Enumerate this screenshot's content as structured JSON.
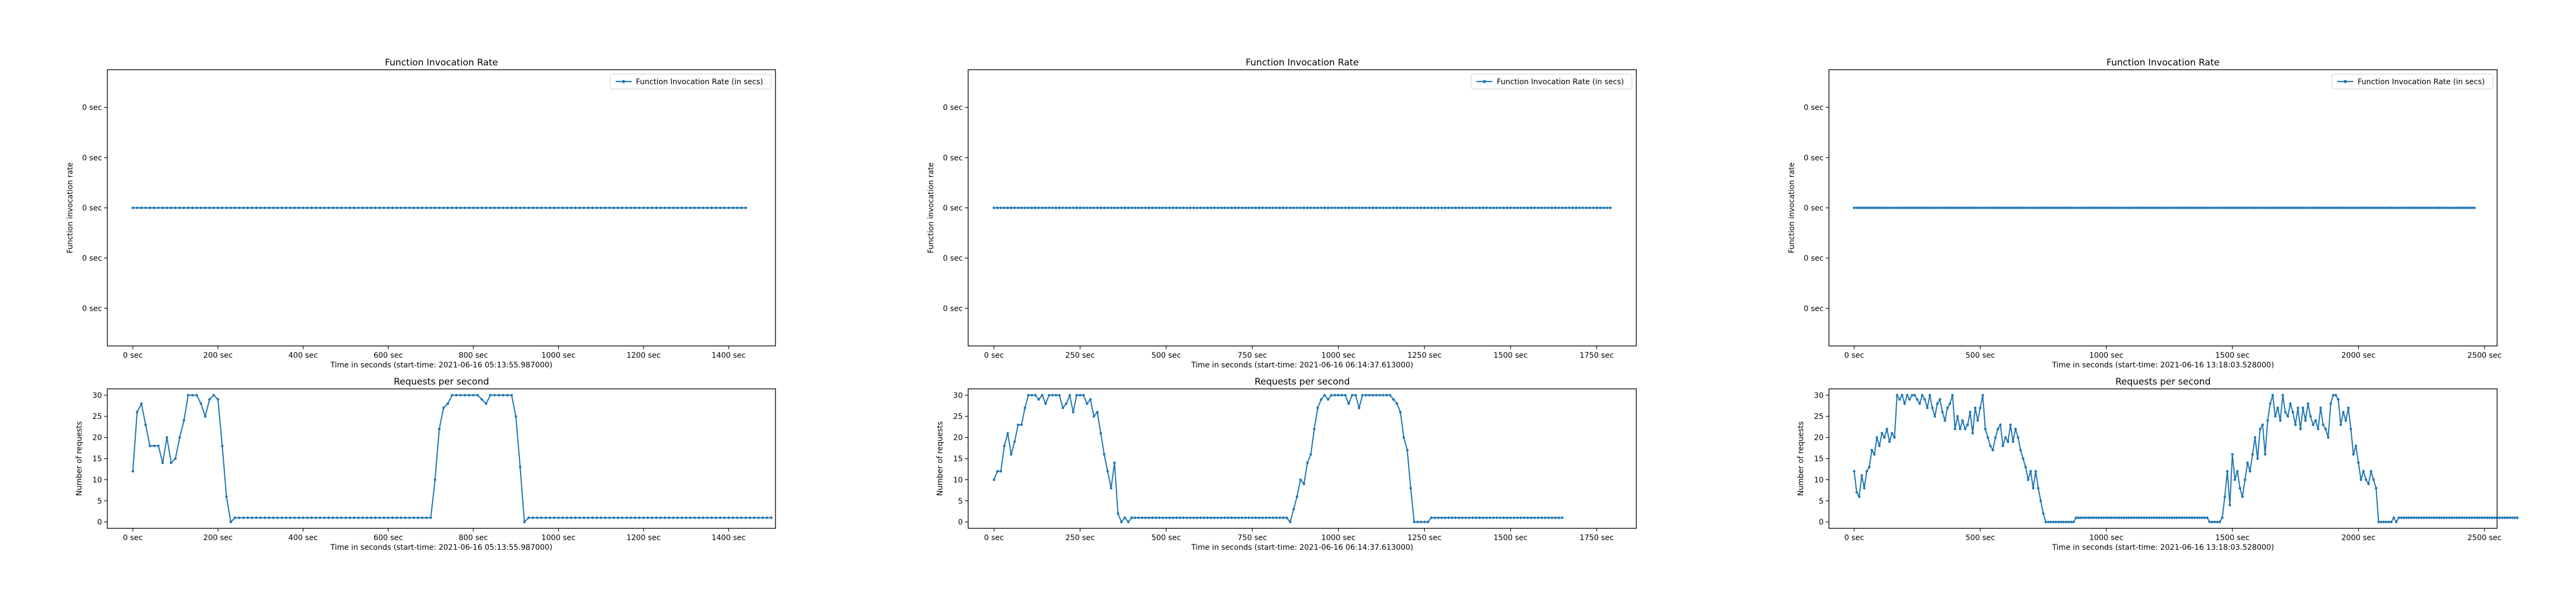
{
  "colors": {
    "series": "#1f77b4",
    "axes": "#000000",
    "background": "#ffffff"
  },
  "chart_data": [
    {
      "type": "line",
      "title": "Function Invocation Rate",
      "xlabel": "Time in seconds (start-time: 2021-06-16 05:13:55.987000)",
      "ylabel": "Function invocation rate",
      "x_tick_labels": [
        "0 sec",
        "200 sec",
        "400 sec",
        "600 sec",
        "800 sec",
        "1000 sec",
        "1200 sec",
        "1400 sec"
      ],
      "y_tick_labels": [
        "0 sec",
        "0 sec",
        "0 sec",
        "0 sec",
        "0 sec"
      ],
      "xlim": [
        -60,
        1510
      ],
      "ylim": [
        -0.055,
        0.055
      ],
      "legend": {
        "label": "Function Invocation Rate (in secs)",
        "placement": "top-right"
      },
      "series": [
        {
          "name": "Function Invocation Rate (in secs)",
          "x_range": [
            0,
            1440
          ],
          "x_step": 10,
          "value": 0,
          "marker": "dot"
        }
      ]
    },
    {
      "type": "line",
      "title": "Requests per second",
      "xlabel": "Time in seconds (start-time: 2021-06-16 05:13:55.987000)",
      "ylabel": "Number of requests",
      "x_tick_labels": [
        "0 sec",
        "200 sec",
        "400 sec",
        "600 sec",
        "800 sec",
        "1000 sec",
        "1200 sec",
        "1400 sec"
      ],
      "y_tick_labels": [
        "0",
        "5",
        "10",
        "15",
        "20",
        "25",
        "30"
      ],
      "xlim": [
        -60,
        1510
      ],
      "ylim": [
        -1.5,
        31.5
      ],
      "series": [
        {
          "x_step": 10,
          "values": [
            12,
            26,
            28,
            23,
            18,
            18,
            18,
            14,
            20,
            14,
            15,
            20,
            24,
            30,
            30,
            30,
            28,
            25,
            29,
            30,
            29,
            18,
            6,
            0,
            1,
            1,
            1,
            1,
            1,
            1,
            1,
            1,
            1,
            1,
            1,
            1,
            1,
            1,
            1,
            1,
            1,
            1,
            1,
            1,
            1,
            1,
            1,
            1,
            1,
            1,
            1,
            1,
            1,
            1,
            1,
            1,
            1,
            1,
            1,
            1,
            1,
            1,
            1,
            1,
            1,
            1,
            1,
            1,
            1,
            1,
            1,
            10,
            22,
            27,
            28,
            30,
            30,
            30,
            30,
            30,
            30,
            30,
            29,
            28,
            30,
            30,
            30,
            30,
            30,
            30,
            25,
            13,
            0,
            1,
            1,
            1,
            1,
            1,
            1,
            1,
            1,
            1,
            1,
            1,
            1,
            1,
            1,
            1,
            1,
            1,
            1,
            1,
            1,
            1,
            1,
            1,
            1,
            1,
            1,
            1,
            1,
            1,
            1,
            1,
            1,
            1,
            1,
            1,
            1,
            1,
            1,
            1,
            1,
            1,
            1,
            1,
            1,
            1,
            1,
            1,
            1,
            1,
            1,
            1,
            1,
            1,
            1,
            1,
            1,
            1,
            1
          ]
        }
      ]
    },
    {
      "type": "line",
      "title": "Function Invocation Rate",
      "xlabel": "Time in seconds (start-time: 2021-06-16 06:14:37.613000)",
      "ylabel": "Function invocation rate",
      "x_tick_labels": [
        "0 sec",
        "250 sec",
        "500 sec",
        "750 sec",
        "1000 sec",
        "1250 sec",
        "1500 sec",
        "1750 sec"
      ],
      "y_tick_labels": [
        "0 sec",
        "0 sec",
        "0 sec",
        "0 sec",
        "0 sec"
      ],
      "xlim": [
        -75,
        1865
      ],
      "ylim": [
        -0.055,
        0.055
      ],
      "legend": {
        "label": "Function Invocation Rate (in secs)",
        "placement": "top-right"
      },
      "series": [
        {
          "name": "Function Invocation Rate (in secs)",
          "x_range": [
            0,
            1790
          ],
          "x_step": 10,
          "value": 0,
          "marker": "dot"
        }
      ]
    },
    {
      "type": "line",
      "title": "Requests per second",
      "xlabel": "Time in seconds (start-time: 2021-06-16 06:14:37.613000)",
      "ylabel": "Number of requests",
      "x_tick_labels": [
        "0 sec",
        "250 sec",
        "500 sec",
        "750 sec",
        "1000 sec",
        "1250 sec",
        "1500 sec",
        "1750 sec"
      ],
      "y_tick_labels": [
        "0",
        "5",
        "10",
        "15",
        "20",
        "25",
        "30"
      ],
      "xlim": [
        -75,
        1865
      ],
      "ylim": [
        -1.5,
        31.5
      ],
      "series": [
        {
          "x_step": 10,
          "values": [
            10,
            12,
            12,
            18,
            21,
            16,
            19,
            23,
            23,
            27,
            30,
            30,
            30,
            29,
            30,
            28,
            30,
            30,
            30,
            30,
            27,
            28,
            30,
            26,
            30,
            30,
            30,
            28,
            29,
            25,
            26,
            21,
            16,
            12,
            8,
            14,
            2,
            0,
            1,
            0,
            1,
            1,
            1,
            1,
            1,
            1,
            1,
            1,
            1,
            1,
            1,
            1,
            1,
            1,
            1,
            1,
            1,
            1,
            1,
            1,
            1,
            1,
            1,
            1,
            1,
            1,
            1,
            1,
            1,
            1,
            1,
            1,
            1,
            1,
            1,
            1,
            1,
            1,
            1,
            1,
            1,
            1,
            1,
            1,
            1,
            1,
            0,
            3,
            6,
            10,
            9,
            14,
            16,
            22,
            27,
            29,
            30,
            29,
            30,
            30,
            30,
            30,
            30,
            28,
            30,
            30,
            27,
            30,
            30,
            30,
            30,
            30,
            30,
            30,
            30,
            30,
            29,
            28,
            26,
            20,
            17,
            8,
            0,
            0,
            0,
            0,
            0,
            1,
            1,
            1,
            1,
            1,
            1,
            1,
            1,
            1,
            1,
            1,
            1,
            1,
            1,
            1,
            1,
            1,
            1,
            1,
            1,
            1,
            1,
            1,
            1,
            1,
            1,
            1,
            1,
            1,
            1,
            1,
            1,
            1,
            1,
            1,
            1,
            1,
            1,
            1
          ]
        }
      ]
    },
    {
      "type": "line",
      "title": "Function Invocation Rate",
      "xlabel": "Time in seconds (start-time: 2021-06-16 13:18:03.528000)",
      "ylabel": "Function invocation rate",
      "x_tick_labels": [
        "0 sec",
        "500 sec",
        "1000 sec",
        "1500 sec",
        "2000 sec",
        "2500 sec"
      ],
      "y_tick_labels": [
        "0 sec",
        "0 sec",
        "0 sec",
        "0 sec",
        "0 sec"
      ],
      "xlim": [
        -100,
        2550
      ],
      "ylim": [
        -0.055,
        0.055
      ],
      "legend": {
        "label": "Function Invocation Rate (in secs)",
        "placement": "top-right"
      },
      "series": [
        {
          "name": "Function Invocation Rate (in secs)",
          "x_range": [
            0,
            2460
          ],
          "x_step": 10,
          "value": 0,
          "marker": "dot"
        }
      ]
    },
    {
      "type": "line",
      "title": "Requests per second",
      "xlabel": "Time in seconds (start-time: 2021-06-16 13:18:03.528000)",
      "ylabel": "Number of requests",
      "x_tick_labels": [
        "0 sec",
        "500 sec",
        "1000 sec",
        "1500 sec",
        "2000 sec",
        "2500 sec"
      ],
      "y_tick_labels": [
        "0",
        "5",
        "10",
        "15",
        "20",
        "25",
        "30"
      ],
      "xlim": [
        -100,
        2550
      ],
      "ylim": [
        -1.5,
        31.5
      ],
      "series": [
        {
          "x_step": 10,
          "values": [
            12,
            7,
            6,
            11,
            8,
            12,
            13,
            17,
            16,
            20,
            18,
            21,
            20,
            22,
            19,
            21,
            20,
            30,
            29,
            30,
            28,
            30,
            29,
            30,
            30,
            29,
            28,
            30,
            29,
            27,
            30,
            27,
            25,
            28,
            29,
            26,
            24,
            27,
            28,
            30,
            22,
            25,
            22,
            24,
            22,
            23,
            26,
            21,
            27,
            24,
            27,
            30,
            22,
            20,
            18,
            17,
            20,
            22,
            23,
            18,
            20,
            19,
            23,
            19,
            22,
            20,
            17,
            15,
            13,
            10,
            12,
            8,
            12,
            8,
            5,
            2,
            0,
            0,
            0,
            0,
            0,
            0,
            0,
            0,
            0,
            0,
            0,
            0,
            1,
            1,
            1,
            1,
            1,
            1,
            1,
            1,
            1,
            1,
            1,
            1,
            1,
            1,
            1,
            1,
            1,
            1,
            1,
            1,
            1,
            1,
            1,
            1,
            1,
            1,
            1,
            1,
            1,
            1,
            1,
            1,
            1,
            1,
            1,
            1,
            1,
            1,
            1,
            1,
            1,
            1,
            1,
            1,
            1,
            1,
            1,
            1,
            1,
            1,
            1,
            1,
            1,
            0,
            0,
            0,
            0,
            0,
            1,
            6,
            12,
            4,
            16,
            10,
            12,
            8,
            6,
            10,
            14,
            12,
            16,
            20,
            15,
            22,
            23,
            16,
            24,
            28,
            30,
            25,
            27,
            24,
            30,
            26,
            25,
            28,
            26,
            23,
            27,
            22,
            27,
            24,
            28,
            25,
            23,
            24,
            22,
            27,
            23,
            22,
            20,
            28,
            30,
            30,
            29,
            23,
            26,
            24,
            27,
            22,
            16,
            18,
            14,
            10,
            12,
            10,
            9,
            12,
            10,
            8,
            0,
            0,
            0,
            0,
            0,
            0,
            1,
            0,
            1,
            1,
            1,
            1,
            1,
            1,
            1,
            1,
            1,
            1,
            1,
            1,
            1,
            1,
            1,
            1,
            1,
            1,
            1,
            1,
            1,
            1,
            1,
            1,
            1,
            1,
            1,
            1,
            1,
            1,
            1,
            1,
            1,
            1,
            1,
            1,
            1,
            1,
            1,
            1,
            1,
            1,
            1,
            1,
            1,
            1,
            1,
            1
          ]
        }
      ]
    }
  ]
}
